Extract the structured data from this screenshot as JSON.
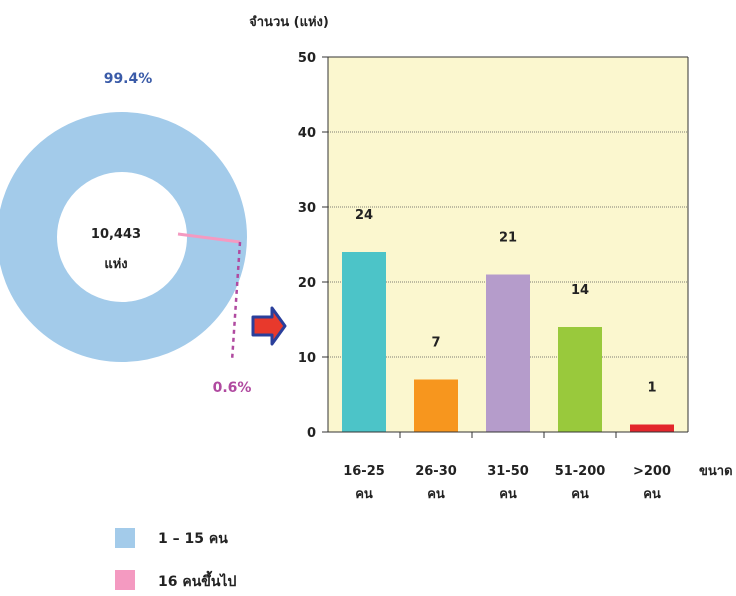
{
  "donut": {
    "center_value": "10,443",
    "center_unit": "แห่ง",
    "big_share_label": "99.4%",
    "small_share_label": "0.6%",
    "values_percent": [
      99.4,
      0.6
    ],
    "colors": [
      "#a3cbea",
      "#f49ac1"
    ],
    "label_colors": [
      "#3a5ba8",
      "#b04aa0"
    ]
  },
  "legend": {
    "items": [
      {
        "label": "1 – 15 คน",
        "color": "#a3cbea"
      },
      {
        "label": "16 คนขึ้นไป",
        "color": "#f49ac1"
      }
    ]
  },
  "arrow": {
    "fill": "#e8392c",
    "stroke": "#2a3f9b"
  },
  "chart_data": {
    "type": "bar",
    "ylabel": "จำนวน (แห่ง)",
    "xlabel": "ขนาด",
    "ylim": [
      0,
      50
    ],
    "yticks": [
      0,
      10,
      20,
      30,
      40,
      50
    ],
    "grid": true,
    "plot_background": "#fbf7cf",
    "categories": [
      {
        "line1": "16-25",
        "line2": "คน"
      },
      {
        "line1": "26-30",
        "line2": "คน"
      },
      {
        "line1": "31-50",
        "line2": "คน"
      },
      {
        "line1": "51-200",
        "line2": "คน"
      },
      {
        "line1": ">200",
        "line2": "คน"
      }
    ],
    "values": [
      24,
      7,
      21,
      14,
      1
    ],
    "value_labels": [
      "24",
      "7",
      "21",
      "14",
      "1"
    ],
    "colors": [
      "#4cc4c8",
      "#f7961e",
      "#b59ccb",
      "#99c93c",
      "#e3262c"
    ]
  }
}
